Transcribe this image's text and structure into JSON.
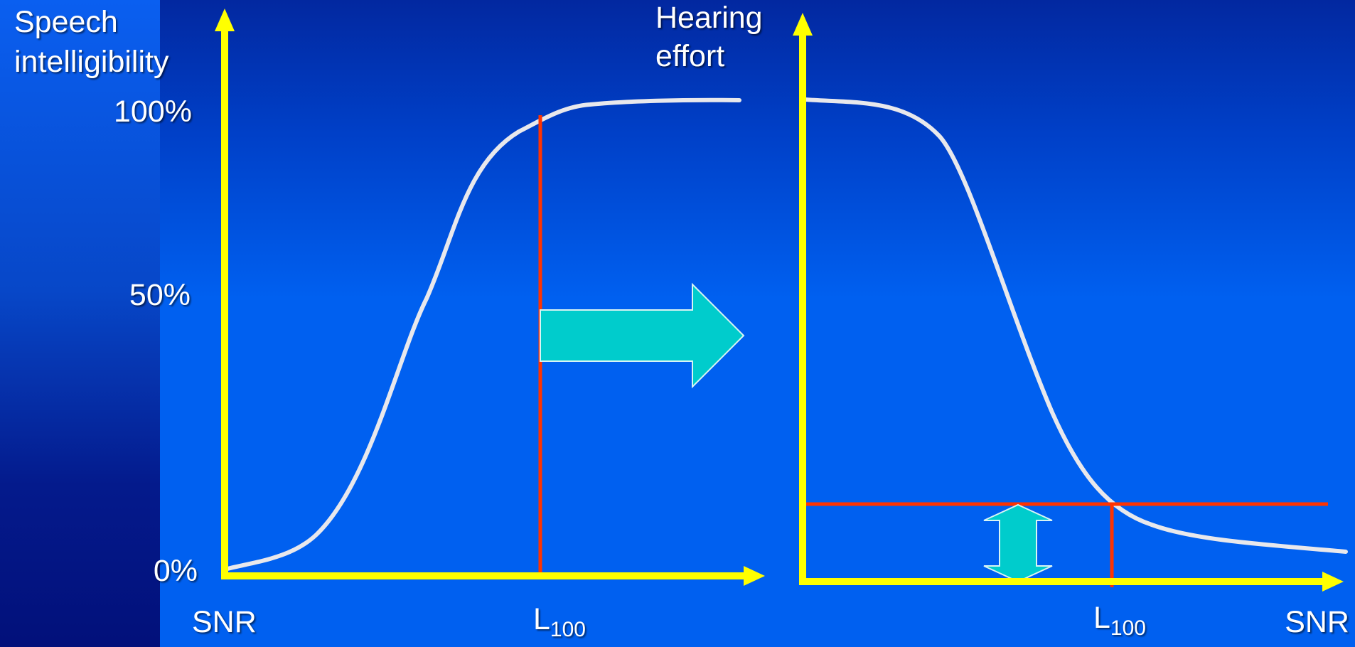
{
  "left_chart": {
    "y_title_line1": "Speech",
    "y_title_line2": "intelligibility",
    "ticks": {
      "top": "100%",
      "mid": "50%",
      "bottom": "0%"
    },
    "x_label": "SNR",
    "marker_main": "L",
    "marker_sub": "100"
  },
  "right_chart": {
    "y_title_line1": "Hearing",
    "y_title_line2": "effort",
    "x_label": "SNR",
    "marker_main": "L",
    "marker_sub": "100"
  },
  "colors": {
    "background": "#0060f0",
    "axis": "#ffff00",
    "curve": "#e8e8ec",
    "marker_line": "#ff3300",
    "arrow": "#00cccc"
  },
  "shapes": [
    "right-arrow",
    "double-vertical-arrow"
  ]
}
